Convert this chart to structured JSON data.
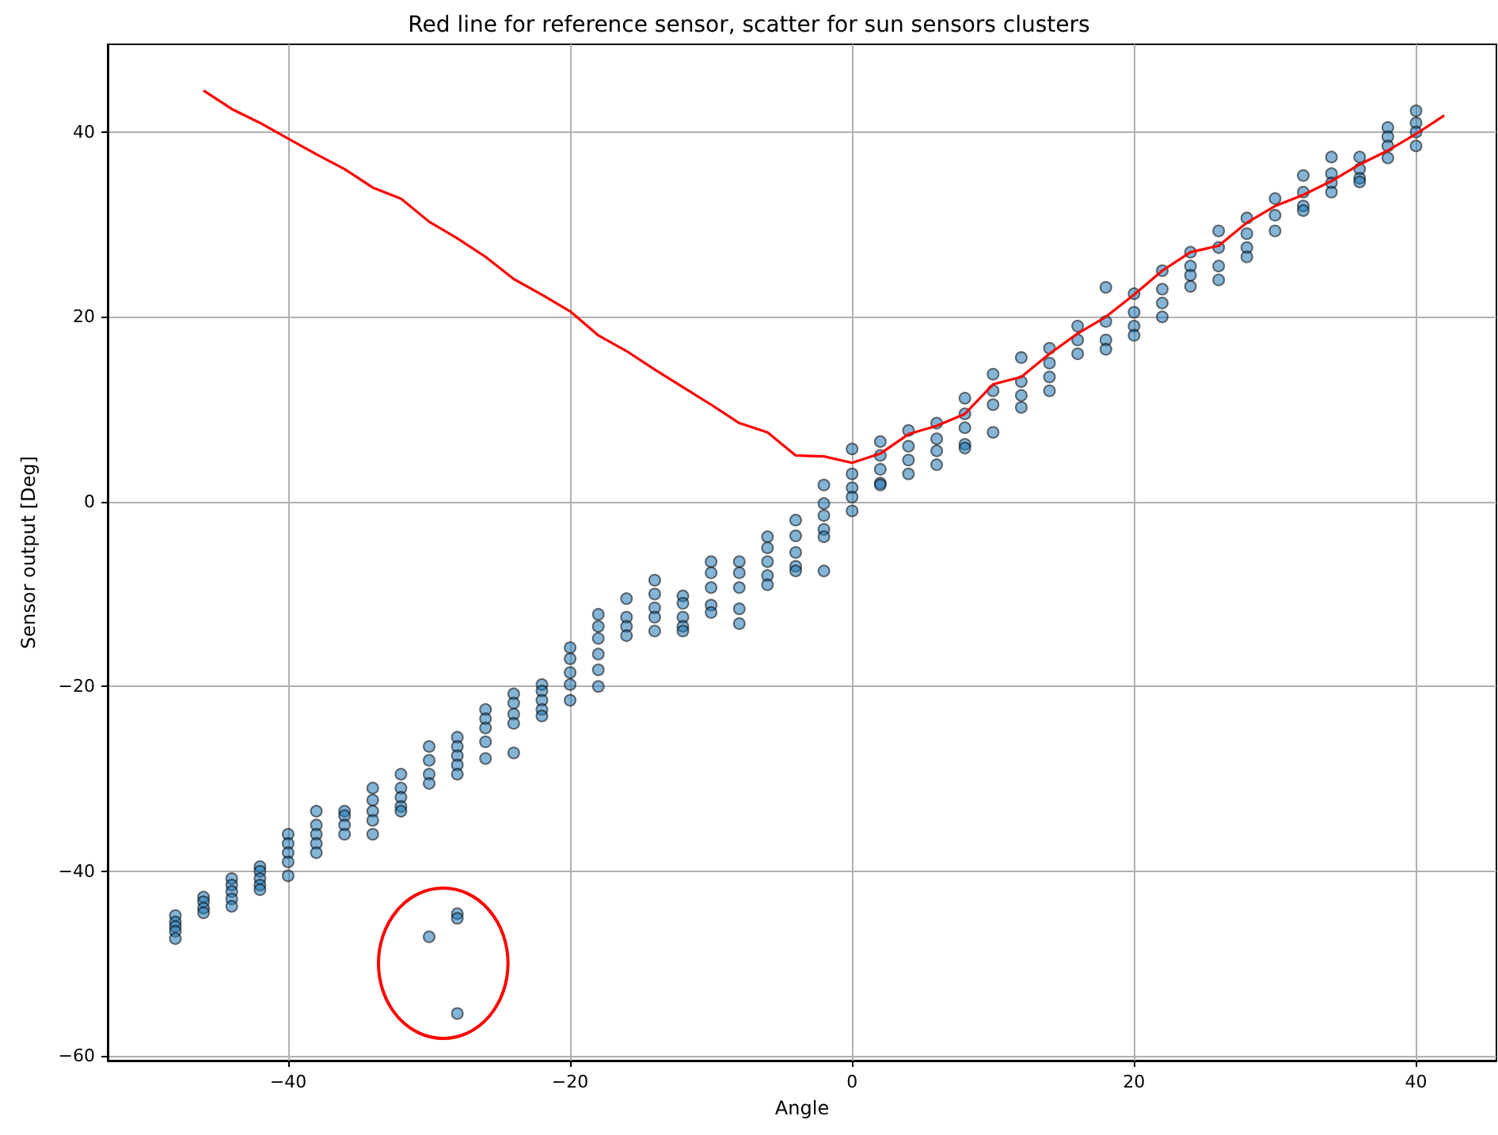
{
  "chart_data": {
    "type": "scatter",
    "title": "Red line for reference sensor, scatter for sun sensors clusters",
    "xlabel": "Angle",
    "ylabel": "Sensor output [Deg]",
    "xlim": [
      -52.8,
      45.7
    ],
    "xticks": [
      -40,
      -20,
      0,
      20,
      40
    ],
    "ylim": [
      -60.5,
      49.5
    ],
    "yticks": [
      -60,
      -40,
      -20,
      0,
      20,
      40
    ],
    "grid": true,
    "marker": "circle",
    "series": [
      {
        "color": "#1f77b4",
        "x": [
          -48,
          -48,
          -48,
          -48,
          -48,
          -46,
          -46,
          -46,
          -46,
          -44,
          -44,
          -44,
          -44,
          -44,
          -42,
          -42,
          -42,
          -42,
          -42,
          -40,
          -40,
          -40,
          -40,
          -40,
          -38,
          -38,
          -38,
          -38,
          -38,
          -36,
          -36,
          -36,
          -36,
          -34,
          -34,
          -34,
          -34,
          -34,
          -32,
          -32,
          -32,
          -32,
          -32,
          -30,
          -30,
          -30,
          -30,
          -30,
          -28,
          -28,
          -28,
          -28,
          -28,
          -28,
          -28,
          -28,
          -26,
          -26,
          -26,
          -26,
          -26,
          -24,
          -24,
          -24,
          -24,
          -24,
          -22,
          -22,
          -22,
          -22,
          -22,
          -20,
          -20,
          -20,
          -20,
          -20,
          -18,
          -18,
          -18,
          -18,
          -18,
          -18,
          -16,
          -16,
          -16,
          -16,
          -14,
          -14,
          -14,
          -14,
          -14,
          -12,
          -12,
          -12,
          -12,
          -12,
          -10,
          -10,
          -10,
          -10,
          -10,
          -8,
          -8,
          -8,
          -8,
          -8,
          -6,
          -6,
          -6,
          -6,
          -6,
          -4,
          -4,
          -4,
          -4,
          -4,
          -2,
          -2,
          -2,
          -2,
          -2,
          -2,
          0,
          0,
          0,
          0,
          0,
          2,
          2,
          2,
          2,
          2,
          4,
          4,
          4,
          4,
          6,
          6,
          6,
          6,
          8,
          8,
          8,
          8,
          8,
          10,
          10,
          10,
          10,
          12,
          12,
          12,
          12,
          14,
          14,
          14,
          14,
          16,
          16,
          16,
          18,
          18,
          18,
          18,
          20,
          20,
          20,
          20,
          22,
          22,
          22,
          22,
          24,
          24,
          24,
          24,
          26,
          26,
          26,
          26,
          28,
          28,
          28,
          28,
          30,
          30,
          30,
          32,
          32,
          32,
          32,
          34,
          34,
          34,
          34,
          36,
          36,
          36,
          36,
          38,
          38,
          38,
          38,
          40,
          40,
          40,
          40
        ],
        "values": [
          -44.8,
          -45.5,
          -46,
          -46.5,
          -47.3,
          -42.8,
          -43.3,
          -44,
          -44.5,
          -40.8,
          -41.5,
          -42.2,
          -43,
          -43.8,
          -39.5,
          -40,
          -40.8,
          -41.5,
          -42,
          -36,
          -37,
          -38,
          -39,
          -40.5,
          -33.5,
          -35,
          -36,
          -37,
          -38,
          -33.5,
          -34,
          -35,
          -36,
          -31,
          -32.3,
          -33.5,
          -34.5,
          -36,
          -29.5,
          -31,
          -32,
          -33,
          -33.5,
          -26.5,
          -28,
          -29.5,
          -30.5,
          -47.1,
          -25.5,
          -26.5,
          -27.5,
          -28.5,
          -29.5,
          -44.6,
          -45.1,
          -55.4,
          -22.5,
          -23.5,
          -24.5,
          -26,
          -27.8,
          -20.8,
          -21.8,
          -23,
          -24,
          -27.2,
          -19.8,
          -20.5,
          -21.5,
          -22.5,
          -23.2,
          -15.8,
          -17,
          -18.5,
          -19.8,
          -21.5,
          -12.2,
          -13.5,
          -14.8,
          -16.5,
          -18.2,
          -20,
          -10.5,
          -12.5,
          -13.5,
          -14.5,
          -8.5,
          -10,
          -11.5,
          -12.5,
          -14,
          -10.2,
          -11,
          -12.5,
          -13.5,
          -14,
          -6.5,
          -7.7,
          -9.3,
          -11.2,
          -12,
          -6.5,
          -7.7,
          -9.3,
          -11.6,
          -13.2,
          -3.8,
          -5,
          -6.5,
          -8,
          -9,
          -2,
          -3.7,
          -5.5,
          -7,
          -7.5,
          1.8,
          -0.2,
          -1.5,
          -3,
          -3.8,
          -7.5,
          5.7,
          3,
          1.5,
          0.5,
          -1,
          6.5,
          5,
          3.5,
          2,
          1.8,
          7.7,
          6,
          4.5,
          3,
          8.5,
          6.8,
          5.5,
          4,
          11.2,
          9.5,
          8,
          6.2,
          5.8,
          13.8,
          12,
          10.5,
          7.5,
          15.6,
          13,
          11.5,
          10.2,
          16.6,
          15,
          13.5,
          12,
          19,
          17.5,
          16,
          23.2,
          19.5,
          17.5,
          16.5,
          22.5,
          20.5,
          19,
          18,
          25,
          23,
          21.5,
          20,
          27,
          25.5,
          24.5,
          23.3,
          29.3,
          27.5,
          25.5,
          24,
          30.7,
          29,
          27.5,
          26.5,
          32.8,
          31,
          29.3,
          35.3,
          33.5,
          32,
          31.5,
          37.3,
          35.5,
          34.5,
          33.5,
          37.3,
          36,
          35,
          34.6,
          40.5,
          39.5,
          38.5,
          37.2,
          42.3,
          41,
          40,
          38.5
        ]
      },
      {
        "type": "line",
        "color": "#ff0000",
        "marker": "none",
        "x": [
          -46,
          -44,
          -42,
          -40,
          -38,
          -36,
          -34,
          -32,
          -30,
          -28,
          -26,
          -24,
          -22,
          -20,
          -18,
          -16,
          -14,
          -12,
          -10,
          -8,
          -6,
          -4,
          -2,
          0,
          2,
          4,
          6,
          8,
          10,
          12,
          14,
          16,
          18,
          20,
          22,
          24,
          26,
          28,
          30,
          32,
          34,
          36,
          38,
          40,
          42
        ],
        "values": [
          44.5,
          42.5,
          41,
          39.3,
          37.6,
          36,
          34,
          32.8,
          30.3,
          28.5,
          26.5,
          24.1,
          22.4,
          20.6,
          18,
          16.3,
          14.3,
          12.4,
          10.5,
          8.5,
          7.5,
          5,
          4.9,
          4.2,
          5.2,
          7.3,
          8.2,
          9.5,
          12.7,
          13.5,
          16,
          18.2,
          20,
          22.4,
          25,
          27,
          27.7,
          30.2,
          32,
          33.2,
          34.7,
          36.5,
          38,
          39.8,
          41.8
        ]
      }
    ]
  }
}
